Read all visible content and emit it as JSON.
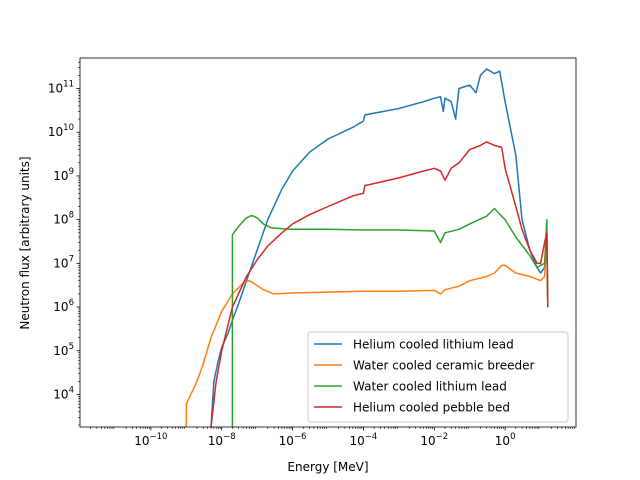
{
  "chart_data": {
    "type": "line",
    "title": "",
    "xlabel": "Energy [MeV]",
    "ylabel": "Neutron flux [arbitrary units]",
    "x_scale": "log",
    "y_scale": "log",
    "xlim": [
      1e-12,
      100
    ],
    "ylim": [
      1800,
      500000000000.0
    ],
    "grid": false,
    "legend_position": "lower right",
    "x_ticks": [
      {
        "value": 1e-10,
        "base": "10",
        "exp": "−10"
      },
      {
        "value": 1e-08,
        "base": "10",
        "exp": "−8"
      },
      {
        "value": 1e-06,
        "base": "10",
        "exp": "−6"
      },
      {
        "value": 0.0001,
        "base": "10",
        "exp": "−4"
      },
      {
        "value": 0.01,
        "base": "10",
        "exp": "−2"
      },
      {
        "value": 1,
        "base": "10",
        "exp": "0"
      }
    ],
    "y_ticks": [
      {
        "value": 10000.0,
        "base": "10",
        "exp": "4"
      },
      {
        "value": 100000.0,
        "base": "10",
        "exp": "5"
      },
      {
        "value": 1000000.0,
        "base": "10",
        "exp": "6"
      },
      {
        "value": 10000000.0,
        "base": "10",
        "exp": "7"
      },
      {
        "value": 100000000.0,
        "base": "10",
        "exp": "8"
      },
      {
        "value": 1000000000.0,
        "base": "10",
        "exp": "9"
      },
      {
        "value": 10000000000.0,
        "base": "10",
        "exp": "10"
      },
      {
        "value": 100000000000.0,
        "base": "10",
        "exp": "11"
      }
    ],
    "series": [
      {
        "name": "Helium cooled lithium lead",
        "color": "#1f77b4",
        "points": [
          [
            5e-09,
            1800
          ],
          [
            6e-09,
            20000
          ],
          [
            8e-09,
            60000
          ],
          [
            1e-08,
            120000.0
          ],
          [
            1.5e-08,
            250000.0
          ],
          [
            2e-08,
            500000.0
          ],
          [
            3e-08,
            1200000.0
          ],
          [
            5e-08,
            4000000.0
          ],
          [
            1e-07,
            20000000.0
          ],
          [
            2e-07,
            100000000.0
          ],
          [
            5e-07,
            500000000.0
          ],
          [
            1e-06,
            1300000000.0
          ],
          [
            3e-06,
            3500000000.0
          ],
          [
            1e-05,
            7000000000.0
          ],
          [
            5e-05,
            13000000000.0
          ],
          [
            0.0001,
            18000000000.0
          ],
          [
            0.00011,
            25000000000.0
          ],
          [
            0.001,
            35000000000.0
          ],
          [
            0.005,
            50000000000.0
          ],
          [
            0.01,
            60000000000.0
          ],
          [
            0.015,
            65000000000.0
          ],
          [
            0.018,
            30000000000.0
          ],
          [
            0.02,
            60000000000.0
          ],
          [
            0.03,
            50000000000.0
          ],
          [
            0.04,
            20000000000.0
          ],
          [
            0.05,
            100000000000.0
          ],
          [
            0.1,
            120000000000.0
          ],
          [
            0.15,
            80000000000.0
          ],
          [
            0.2,
            200000000000.0
          ],
          [
            0.3,
            280000000000.0
          ],
          [
            0.5,
            220000000000.0
          ],
          [
            0.7,
            250000000000.0
          ],
          [
            1,
            50000000000.0
          ],
          [
            2,
            3000000000.0
          ],
          [
            3,
            100000000.0
          ],
          [
            5,
            20000000.0
          ],
          [
            8,
            8000000.0
          ],
          [
            10,
            6000000.0
          ],
          [
            13,
            8000000.0
          ],
          [
            15,
            50000000.0
          ],
          [
            16,
            1000000.0
          ]
        ]
      },
      {
        "name": "Water cooled ceramic breeder",
        "color": "#ff7f0e",
        "points": [
          [
            1e-09,
            1800
          ],
          [
            1e-09,
            6000
          ],
          [
            2e-09,
            20000
          ],
          [
            3e-09,
            50000
          ],
          [
            5e-09,
            200000.0
          ],
          [
            1e-08,
            800000.0
          ],
          [
            2e-08,
            2000000.0
          ],
          [
            4e-08,
            3500000.0
          ],
          [
            6e-08,
            4000000.0
          ],
          [
            8e-08,
            3500000.0
          ],
          [
            1.5e-07,
            2500000.0
          ],
          [
            3e-07,
            2000000.0
          ],
          [
            1e-06,
            2100000.0
          ],
          [
            1e-05,
            2200000.0
          ],
          [
            0.0001,
            2300000.0
          ],
          [
            0.001,
            2300000.0
          ],
          [
            0.01,
            2400000.0
          ],
          [
            0.015,
            2000000.0
          ],
          [
            0.02,
            2500000.0
          ],
          [
            0.05,
            3000000.0
          ],
          [
            0.1,
            4000000.0
          ],
          [
            0.3,
            5000000.0
          ],
          [
            0.5,
            6000000.0
          ],
          [
            0.8,
            9000000.0
          ],
          [
            1,
            9000000.0
          ],
          [
            2,
            6000000.0
          ],
          [
            5,
            5000000.0
          ],
          [
            10,
            4000000.0
          ],
          [
            13,
            5000000.0
          ],
          [
            15,
            30000000.0
          ],
          [
            16,
            1000000.0
          ]
        ]
      },
      {
        "name": "Water cooled lithium lead",
        "color": "#2ca02c",
        "points": [
          [
            2e-08,
            1800
          ],
          [
            2e-08,
            45000000.0
          ],
          [
            3e-08,
            70000000.0
          ],
          [
            5e-08,
            110000000.0
          ],
          [
            7e-08,
            125000000.0
          ],
          [
            1e-07,
            110000000.0
          ],
          [
            1.5e-07,
            80000000.0
          ],
          [
            2.5e-07,
            65000000.0
          ],
          [
            5e-07,
            62000000.0
          ],
          [
            1e-06,
            60000000.0
          ],
          [
            1e-05,
            60000000.0
          ],
          [
            0.0001,
            58000000.0
          ],
          [
            0.001,
            58000000.0
          ],
          [
            0.01,
            55000000.0
          ],
          [
            0.015,
            30000000.0
          ],
          [
            0.02,
            50000000.0
          ],
          [
            0.05,
            60000000.0
          ],
          [
            0.1,
            80000000.0
          ],
          [
            0.3,
            120000000.0
          ],
          [
            0.5,
            180000000.0
          ],
          [
            0.8,
            120000000.0
          ],
          [
            1,
            100000000.0
          ],
          [
            2,
            40000000.0
          ],
          [
            5,
            15000000.0
          ],
          [
            8,
            8000000.0
          ],
          [
            10,
            9000000.0
          ],
          [
            13,
            10000000.0
          ],
          [
            15,
            100000000.0
          ],
          [
            16,
            1000000.0
          ]
        ]
      },
      {
        "name": "Helium cooled pebble bed",
        "color": "#d62728",
        "points": [
          [
            5e-09,
            1800
          ],
          [
            7e-09,
            20000
          ],
          [
            1e-08,
            100000.0
          ],
          [
            2e-08,
            1000000.0
          ],
          [
            5e-08,
            5000000.0
          ],
          [
            1e-07,
            12000000.0
          ],
          [
            2e-07,
            25000000.0
          ],
          [
            5e-07,
            50000000.0
          ],
          [
            1e-06,
            80000000.0
          ],
          [
            3e-06,
            130000000.0
          ],
          [
            1e-05,
            200000000.0
          ],
          [
            5e-05,
            350000000.0
          ],
          [
            0.0001,
            400000000.0
          ],
          [
            0.00011,
            600000000.0
          ],
          [
            0.001,
            900000000.0
          ],
          [
            0.005,
            1300000000.0
          ],
          [
            0.01,
            1500000000.0
          ],
          [
            0.015,
            1300000000.0
          ],
          [
            0.02,
            800000000.0
          ],
          [
            0.03,
            1500000000.0
          ],
          [
            0.05,
            2000000000.0
          ],
          [
            0.1,
            4000000000.0
          ],
          [
            0.2,
            5000000000.0
          ],
          [
            0.3,
            6000000000.0
          ],
          [
            0.5,
            5000000000.0
          ],
          [
            0.8,
            4500000000.0
          ],
          [
            1,
            1500000000.0
          ],
          [
            2,
            200000000.0
          ],
          [
            3,
            60000000.0
          ],
          [
            5,
            20000000.0
          ],
          [
            8,
            10000000.0
          ],
          [
            10,
            10000000.0
          ],
          [
            13,
            30000000.0
          ],
          [
            15,
            50000000.0
          ],
          [
            16,
            1000000.0
          ]
        ]
      }
    ]
  }
}
